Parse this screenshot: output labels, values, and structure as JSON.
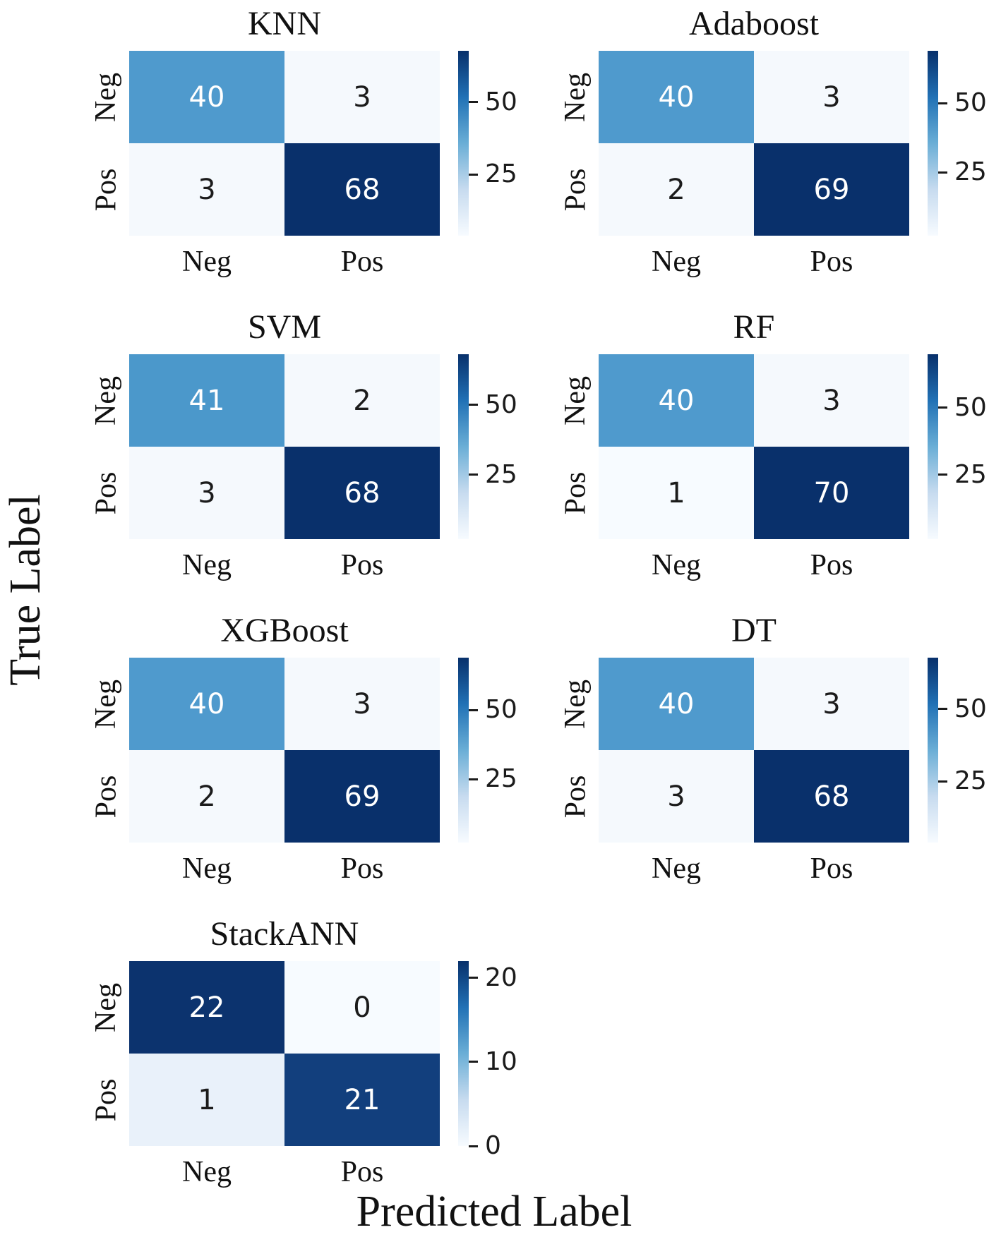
{
  "figure": {
    "ylabel": "True Label",
    "xlabel": "Predicted Label"
  },
  "colors": {
    "background": "#ffffff",
    "cmap_stops": [
      "#08306b",
      "#2171b5",
      "#6aaed6",
      "#c7dbef",
      "#f7fbff"
    ],
    "tick_color": "#1b1b1b",
    "text_dark": "#1b1b1b",
    "text_light": "#ffffff"
  },
  "chart_data": [
    {
      "type": "heatmap",
      "title": "KNN",
      "row_labels": [
        "Neg",
        "Pos"
      ],
      "col_labels": [
        "Neg",
        "Pos"
      ],
      "matrix": [
        [
          40,
          3
        ],
        [
          3,
          68
        ]
      ],
      "vmin": 3,
      "vmax": 68,
      "cell_colors": [
        [
          "#4f9acd",
          "#f5f9fd"
        ],
        [
          "#f5f9fd",
          "#09306b"
        ]
      ],
      "cell_text_colors": [
        [
          "#ffffff",
          "#1b1b1b"
        ],
        [
          "#1b1b1b",
          "#ffffff"
        ]
      ],
      "colorbar_ticks": [
        {
          "label": "50",
          "pos": 0.277
        },
        {
          "label": "25",
          "pos": 0.669
        }
      ],
      "grid": {
        "row": 0,
        "col": 0
      }
    },
    {
      "type": "heatmap",
      "title": "Adaboost",
      "row_labels": [
        "Neg",
        "Pos"
      ],
      "col_labels": [
        "Neg",
        "Pos"
      ],
      "matrix": [
        [
          40,
          3
        ],
        [
          2,
          69
        ]
      ],
      "vmin": 2,
      "vmax": 69,
      "cell_colors": [
        [
          "#4f9acd",
          "#f5f9fd"
        ],
        [
          "#f5f9fd",
          "#09306b"
        ]
      ],
      "cell_text_colors": [
        [
          "#ffffff",
          "#1b1b1b"
        ],
        [
          "#1b1b1b",
          "#ffffff"
        ]
      ],
      "colorbar_ticks": [
        {
          "label": "50",
          "pos": 0.284
        },
        {
          "label": "25",
          "pos": 0.657
        }
      ],
      "grid": {
        "row": 0,
        "col": 1
      }
    },
    {
      "type": "heatmap",
      "title": "SVM",
      "row_labels": [
        "Neg",
        "Pos"
      ],
      "col_labels": [
        "Neg",
        "Pos"
      ],
      "matrix": [
        [
          41,
          2
        ],
        [
          3,
          68
        ]
      ],
      "vmin": 2,
      "vmax": 68,
      "cell_colors": [
        [
          "#4b98cb",
          "#f5f9fd"
        ],
        [
          "#f5f9fd",
          "#09306b"
        ]
      ],
      "cell_text_colors": [
        [
          "#ffffff",
          "#1b1b1b"
        ],
        [
          "#1b1b1b",
          "#ffffff"
        ]
      ],
      "colorbar_ticks": [
        {
          "label": "50",
          "pos": 0.273
        },
        {
          "label": "25",
          "pos": 0.652
        }
      ],
      "grid": {
        "row": 1,
        "col": 0
      }
    },
    {
      "type": "heatmap",
      "title": "RF",
      "row_labels": [
        "Neg",
        "Pos"
      ],
      "col_labels": [
        "Neg",
        "Pos"
      ],
      "matrix": [
        [
          40,
          3
        ],
        [
          1,
          70
        ]
      ],
      "vmin": 1,
      "vmax": 70,
      "cell_colors": [
        [
          "#4f9acd",
          "#f5f9fd"
        ],
        [
          "#f7fbff",
          "#09306b"
        ]
      ],
      "cell_text_colors": [
        [
          "#ffffff",
          "#1b1b1b"
        ],
        [
          "#1b1b1b",
          "#ffffff"
        ]
      ],
      "colorbar_ticks": [
        {
          "label": "50",
          "pos": 0.29
        },
        {
          "label": "25",
          "pos": 0.652
        }
      ],
      "grid": {
        "row": 1,
        "col": 1
      }
    },
    {
      "type": "heatmap",
      "title": "XGBoost",
      "row_labels": [
        "Neg",
        "Pos"
      ],
      "col_labels": [
        "Neg",
        "Pos"
      ],
      "matrix": [
        [
          40,
          3
        ],
        [
          2,
          69
        ]
      ],
      "vmin": 2,
      "vmax": 69,
      "cell_colors": [
        [
          "#4f9acd",
          "#f5f9fd"
        ],
        [
          "#f5f9fd",
          "#09306b"
        ]
      ],
      "cell_text_colors": [
        [
          "#ffffff",
          "#1b1b1b"
        ],
        [
          "#1b1b1b",
          "#ffffff"
        ]
      ],
      "colorbar_ticks": [
        {
          "label": "50",
          "pos": 0.284
        },
        {
          "label": "25",
          "pos": 0.657
        }
      ],
      "grid": {
        "row": 2,
        "col": 0
      }
    },
    {
      "type": "heatmap",
      "title": "DT",
      "row_labels": [
        "Neg",
        "Pos"
      ],
      "col_labels": [
        "Neg",
        "Pos"
      ],
      "matrix": [
        [
          40,
          3
        ],
        [
          3,
          68
        ]
      ],
      "vmin": 3,
      "vmax": 68,
      "cell_colors": [
        [
          "#4f9acd",
          "#f5f9fd"
        ],
        [
          "#f5f9fd",
          "#09306b"
        ]
      ],
      "cell_text_colors": [
        [
          "#ffffff",
          "#1b1b1b"
        ],
        [
          "#1b1b1b",
          "#ffffff"
        ]
      ],
      "colorbar_ticks": [
        {
          "label": "50",
          "pos": 0.277
        },
        {
          "label": "25",
          "pos": 0.669
        }
      ],
      "grid": {
        "row": 2,
        "col": 1
      }
    },
    {
      "type": "heatmap",
      "title": "StackANN",
      "row_labels": [
        "Neg",
        "Pos"
      ],
      "col_labels": [
        "Neg",
        "Pos"
      ],
      "matrix": [
        [
          22,
          0
        ],
        [
          1,
          21
        ]
      ],
      "vmin": 0,
      "vmax": 22,
      "cell_colors": [
        [
          "#0c336e",
          "#f7fbff"
        ],
        [
          "#e9f1fa",
          "#123f7d"
        ]
      ],
      "cell_text_colors": [
        [
          "#ffffff",
          "#1b1b1b"
        ],
        [
          "#1b1b1b",
          "#ffffff"
        ]
      ],
      "colorbar_ticks": [
        {
          "label": "20",
          "pos": 0.091
        },
        {
          "label": "10",
          "pos": 0.545
        },
        {
          "label": "0",
          "pos": 1.0
        }
      ],
      "grid": {
        "row": 3,
        "col": 0
      }
    }
  ]
}
